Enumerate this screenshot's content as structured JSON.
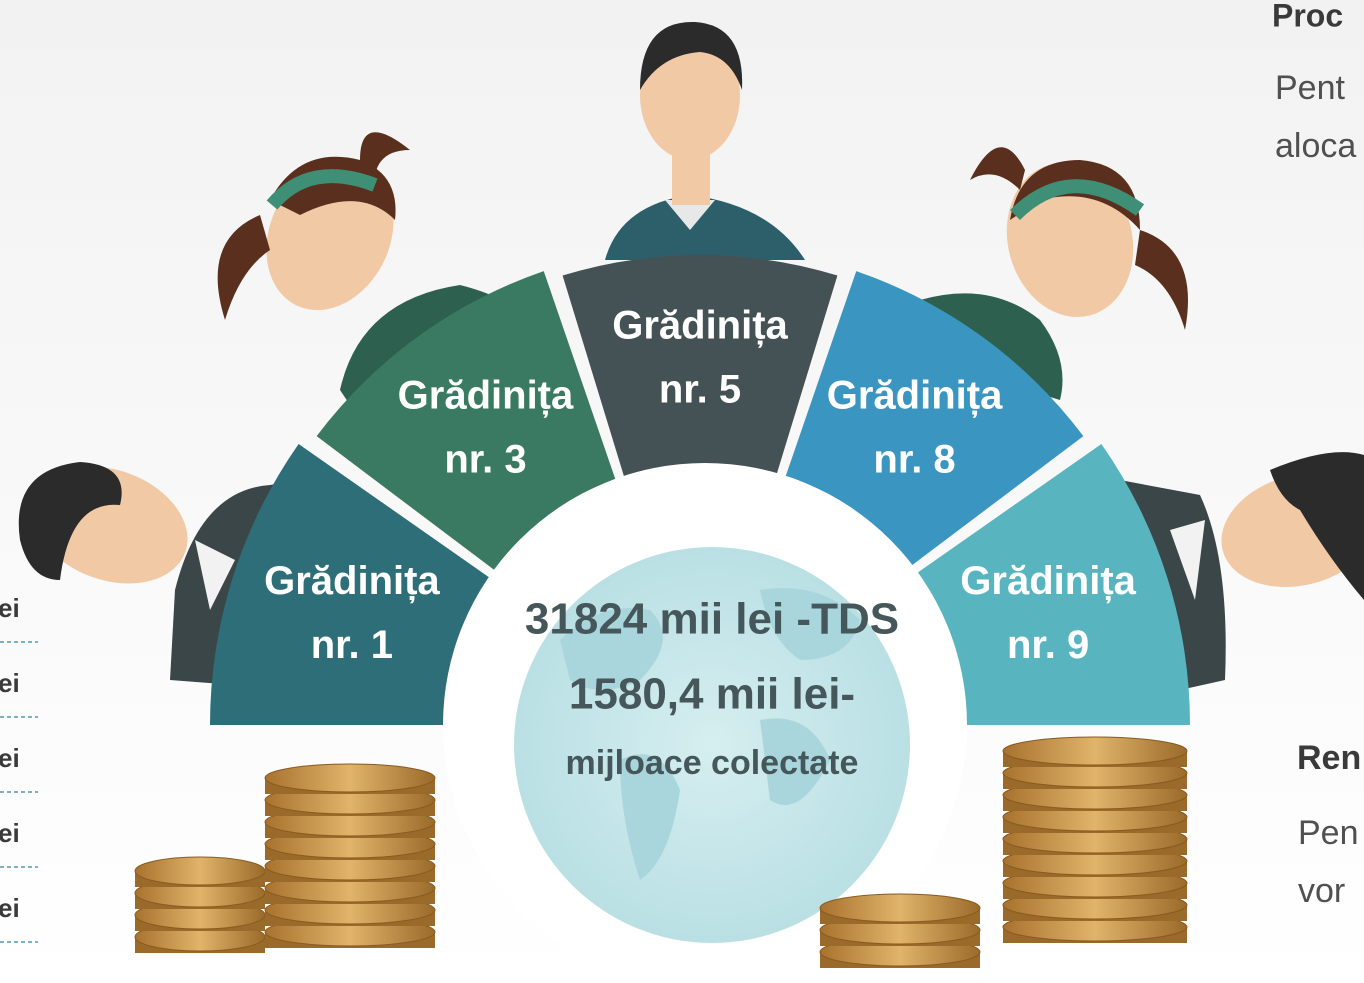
{
  "segments": [
    {
      "line1": "Grădinița",
      "line2": "nr. 1"
    },
    {
      "line1": "Grădinița",
      "line2": "nr. 3"
    },
    {
      "line1": "Grădinița",
      "line2": "nr. 5"
    },
    {
      "line1": "Grădinița",
      "line2": "nr. 8"
    },
    {
      "line1": "Grădinița",
      "line2": "nr. 9"
    }
  ],
  "center": {
    "line1": "31824 mii lei -TDS",
    "line2": "1580,4 mii lei-",
    "line3": "mijloace colectate"
  },
  "left_fragments": [
    "ei",
    "ei",
    "ei",
    "ei",
    "ei"
  ],
  "right_top": {
    "heading": "Proc",
    "line1": "Pent",
    "line2": "aloca"
  },
  "right_bottom": {
    "heading": "Ren",
    "line1": "Pen",
    "line2": "vor"
  }
}
